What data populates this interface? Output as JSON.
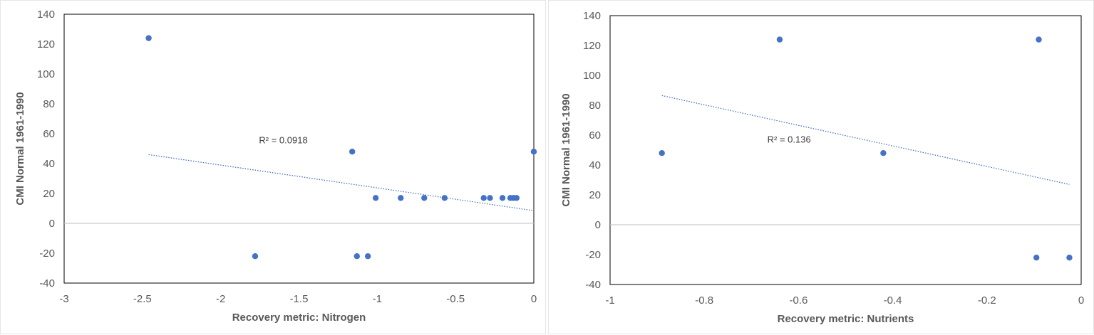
{
  "chart_data": [
    {
      "type": "scatter",
      "xlabel": "Recovery metric: Nitrogen",
      "ylabel": "CMI Normal 1961-1990",
      "xlim": [
        -3,
        0
      ],
      "ylim": [
        -40,
        140
      ],
      "xticks": [
        -3,
        -2.5,
        -2,
        -1.5,
        -1,
        -0.5,
        0
      ],
      "xtick_labels": [
        "-3",
        "-2.5",
        "-2",
        "-1.5",
        "-1",
        "-0.5",
        "0"
      ],
      "yticks": [
        -40,
        -20,
        0,
        20,
        40,
        60,
        80,
        100,
        120,
        140
      ],
      "ytick_labels": [
        "-40",
        "-20",
        "0",
        "20",
        "40",
        "60",
        "80",
        "100",
        "120",
        "140"
      ],
      "points": [
        {
          "x": -2.46,
          "y": 124
        },
        {
          "x": -1.78,
          "y": -22
        },
        {
          "x": -1.16,
          "y": 48
        },
        {
          "x": -1.13,
          "y": -22
        },
        {
          "x": -1.06,
          "y": -22
        },
        {
          "x": -1.01,
          "y": 17
        },
        {
          "x": -0.85,
          "y": 17
        },
        {
          "x": -0.7,
          "y": 17
        },
        {
          "x": -0.57,
          "y": 17
        },
        {
          "x": -0.32,
          "y": 17
        },
        {
          "x": -0.28,
          "y": 17
        },
        {
          "x": -0.2,
          "y": 17
        },
        {
          "x": -0.15,
          "y": 17
        },
        {
          "x": -0.13,
          "y": 17
        },
        {
          "x": -0.11,
          "y": 17
        },
        {
          "x": 0.0,
          "y": 48
        }
      ],
      "trendline": {
        "x": [
          -2.46,
          0.0
        ],
        "y": [
          46,
          8.5
        ]
      },
      "r2_label": "R² = 0.0918",
      "r2_position": {
        "x": -1.6,
        "y": 53.5
      },
      "point_color": "#4472c4",
      "trend_color": "#4472c4"
    },
    {
      "type": "scatter",
      "xlabel": "Recovery metric: Nutrients",
      "ylabel": "CMI Normal 1961-1990",
      "xlim": [
        -1,
        0
      ],
      "ylim": [
        -40,
        140
      ],
      "xticks": [
        -1,
        -0.8,
        -0.6,
        -0.4,
        -0.2,
        0
      ],
      "xtick_labels": [
        "-1",
        "-0.8",
        "-0.6",
        "-0.4",
        "-0.2",
        "0"
      ],
      "yticks": [
        -40,
        -20,
        0,
        20,
        40,
        60,
        80,
        100,
        120,
        140
      ],
      "ytick_labels": [
        "-40",
        "-20",
        "0",
        "20",
        "40",
        "60",
        "80",
        "100",
        "120",
        "140"
      ],
      "points": [
        {
          "x": -0.89,
          "y": 48
        },
        {
          "x": -0.64,
          "y": 124
        },
        {
          "x": -0.42,
          "y": 48
        },
        {
          "x": -0.095,
          "y": -22
        },
        {
          "x": -0.09,
          "y": 124
        },
        {
          "x": -0.025,
          "y": -22
        }
      ],
      "trendline": {
        "x": [
          -0.89,
          -0.025
        ],
        "y": [
          86.5,
          27
        ]
      },
      "r2_label": "R² = 0.136",
      "r2_position": {
        "x": -0.62,
        "y": 55
      },
      "point_color": "#4472c4",
      "trend_color": "#4472c4"
    }
  ]
}
